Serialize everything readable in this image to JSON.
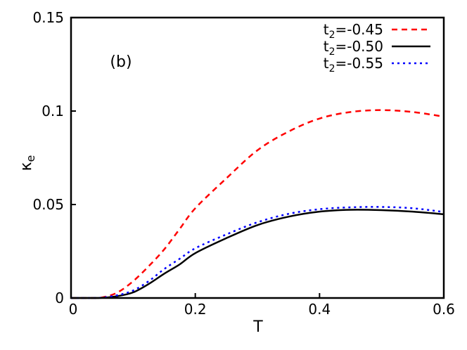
{
  "chart_data": {
    "type": "line",
    "panel_label": "(b)",
    "xlabel": "T",
    "ylabel": {
      "base": "κ",
      "sub": "e"
    },
    "xlim": [
      0,
      0.6
    ],
    "ylim": [
      0,
      0.15
    ],
    "xticks": [
      0,
      0.2,
      0.4,
      0.6
    ],
    "xtick_labels": [
      "0",
      "0.2",
      "0.4",
      "0.6"
    ],
    "yticks": [
      0,
      0.05,
      0.1,
      0.15
    ],
    "ytick_labels": [
      "0",
      "0.05",
      "0.1",
      "0.15"
    ],
    "grid": false,
    "legend_position": "top-right",
    "x": [
      0,
      0.025,
      0.05,
      0.075,
      0.1,
      0.125,
      0.15,
      0.175,
      0.2,
      0.25,
      0.3,
      0.35,
      0.4,
      0.45,
      0.5,
      0.55,
      0.6
    ],
    "series": [
      {
        "name_base": "t",
        "name_sub": "2",
        "name_rest": "=-0.45",
        "color": "#ff0000",
        "style": "dashed",
        "values": [
          0,
          0,
          0.0003,
          0.003,
          0.009,
          0.017,
          0.026,
          0.037,
          0.048,
          0.064,
          0.079,
          0.089,
          0.096,
          0.0995,
          0.1005,
          0.0995,
          0.097
        ]
      },
      {
        "name_base": "t",
        "name_sub": "2",
        "name_rest": "=-0.50",
        "color": "#000000",
        "style": "solid",
        "values": [
          0,
          0,
          0.0001,
          0.001,
          0.003,
          0.0075,
          0.013,
          0.018,
          0.024,
          0.032,
          0.039,
          0.0435,
          0.0462,
          0.0472,
          0.047,
          0.0462,
          0.0448
        ]
      },
      {
        "name_base": "t",
        "name_sub": "2",
        "name_rest": "=-0.55",
        "color": "#0000ff",
        "style": "dotted",
        "values": [
          0,
          0,
          0.0002,
          0.0015,
          0.004,
          0.009,
          0.0155,
          0.021,
          0.0266,
          0.034,
          0.0405,
          0.045,
          0.0475,
          0.0485,
          0.0487,
          0.048,
          0.046
        ]
      }
    ]
  }
}
